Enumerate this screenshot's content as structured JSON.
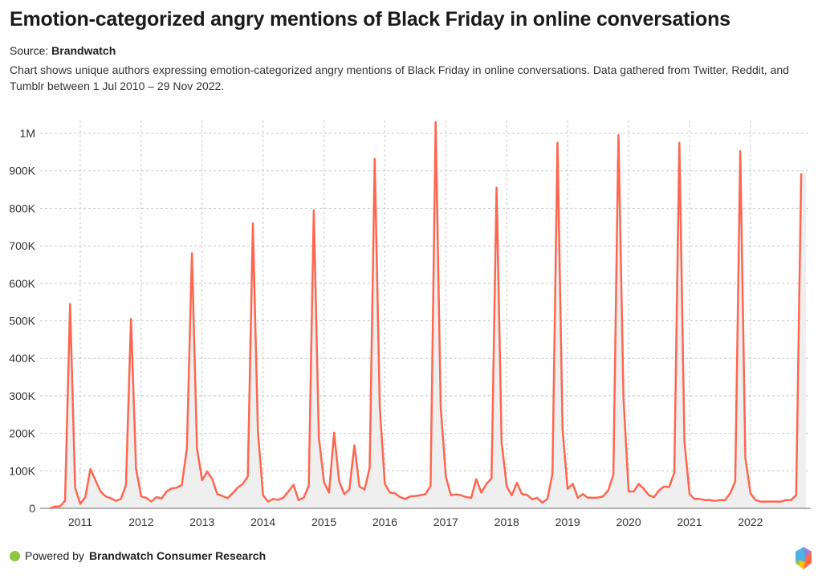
{
  "header": {
    "title": "Emotion-categorized angry mentions of Black Friday in online conversations",
    "source_label": "Source:",
    "source_name": "Brandwatch",
    "description": "Chart shows unique authors expressing emotion-categorized angry mentions of Black Friday in online conversations. Data gathered from Twitter, Reddit, and Tumblr between 1 Jul 2010 – 29 Nov 2022."
  },
  "footer": {
    "powered_by": "Powered by",
    "brand": "Brandwatch Consumer Research",
    "dot_color": "#8dc63f",
    "logo_icon": "brandwatch-hexagon-logo"
  },
  "chart_data": {
    "type": "area",
    "title": "",
    "xlabel": "",
    "ylabel": "",
    "line_color": "#ff6650",
    "fill_color": "#efefef",
    "grid": true,
    "ylim": [
      0,
      1000000
    ],
    "y_ticks": [
      0,
      100000,
      200000,
      300000,
      400000,
      500000,
      600000,
      700000,
      800000,
      900000,
      1000000
    ],
    "y_tick_labels": [
      "0",
      "100K",
      "200K",
      "300K",
      "400K",
      "500K",
      "600K",
      "700K",
      "800K",
      "900K",
      "1M"
    ],
    "x_tick_labels": [
      "2011",
      "2012",
      "2013",
      "2014",
      "2015",
      "2016",
      "2017",
      "2018",
      "2019",
      "2020",
      "2021",
      "2022"
    ],
    "x_start": "2010-07",
    "x_end": "2022-11",
    "x_interval": "month",
    "values": [
      0,
      5000,
      5000,
      20000,
      545000,
      55000,
      12000,
      30000,
      105000,
      75000,
      45000,
      32000,
      27000,
      20000,
      25000,
      62000,
      505000,
      105000,
      32000,
      28000,
      18000,
      30000,
      26000,
      45000,
      53000,
      55000,
      62000,
      160000,
      680000,
      160000,
      75000,
      98000,
      78000,
      38000,
      33000,
      27000,
      40000,
      55000,
      65000,
      85000,
      760000,
      205000,
      35000,
      18000,
      25000,
      23000,
      28000,
      45000,
      63000,
      22000,
      28000,
      60000,
      795000,
      190000,
      70000,
      42000,
      202000,
      72000,
      38000,
      50000,
      168000,
      58000,
      50000,
      108000,
      932000,
      270000,
      65000,
      42000,
      40000,
      30000,
      25000,
      32000,
      33000,
      35000,
      38000,
      60000,
      1030000,
      270000,
      85000,
      35000,
      37000,
      35000,
      30000,
      28000,
      78000,
      42000,
      65000,
      80000,
      855000,
      175000,
      58000,
      35000,
      68000,
      38000,
      36000,
      24000,
      28000,
      15000,
      25000,
      92000,
      975000,
      210000,
      52000,
      65000,
      28000,
      38000,
      28000,
      28000,
      29000,
      32000,
      48000,
      90000,
      995000,
      295000,
      45000,
      45000,
      65000,
      52000,
      35000,
      30000,
      48000,
      58000,
      57000,
      95000,
      975000,
      180000,
      38000,
      25000,
      25000,
      22000,
      22000,
      20000,
      22000,
      22000,
      40000,
      72000,
      952000,
      135000,
      40000,
      22000,
      18000,
      18000,
      18000,
      18000,
      18000,
      22000,
      22000,
      35000,
      893000
    ]
  }
}
